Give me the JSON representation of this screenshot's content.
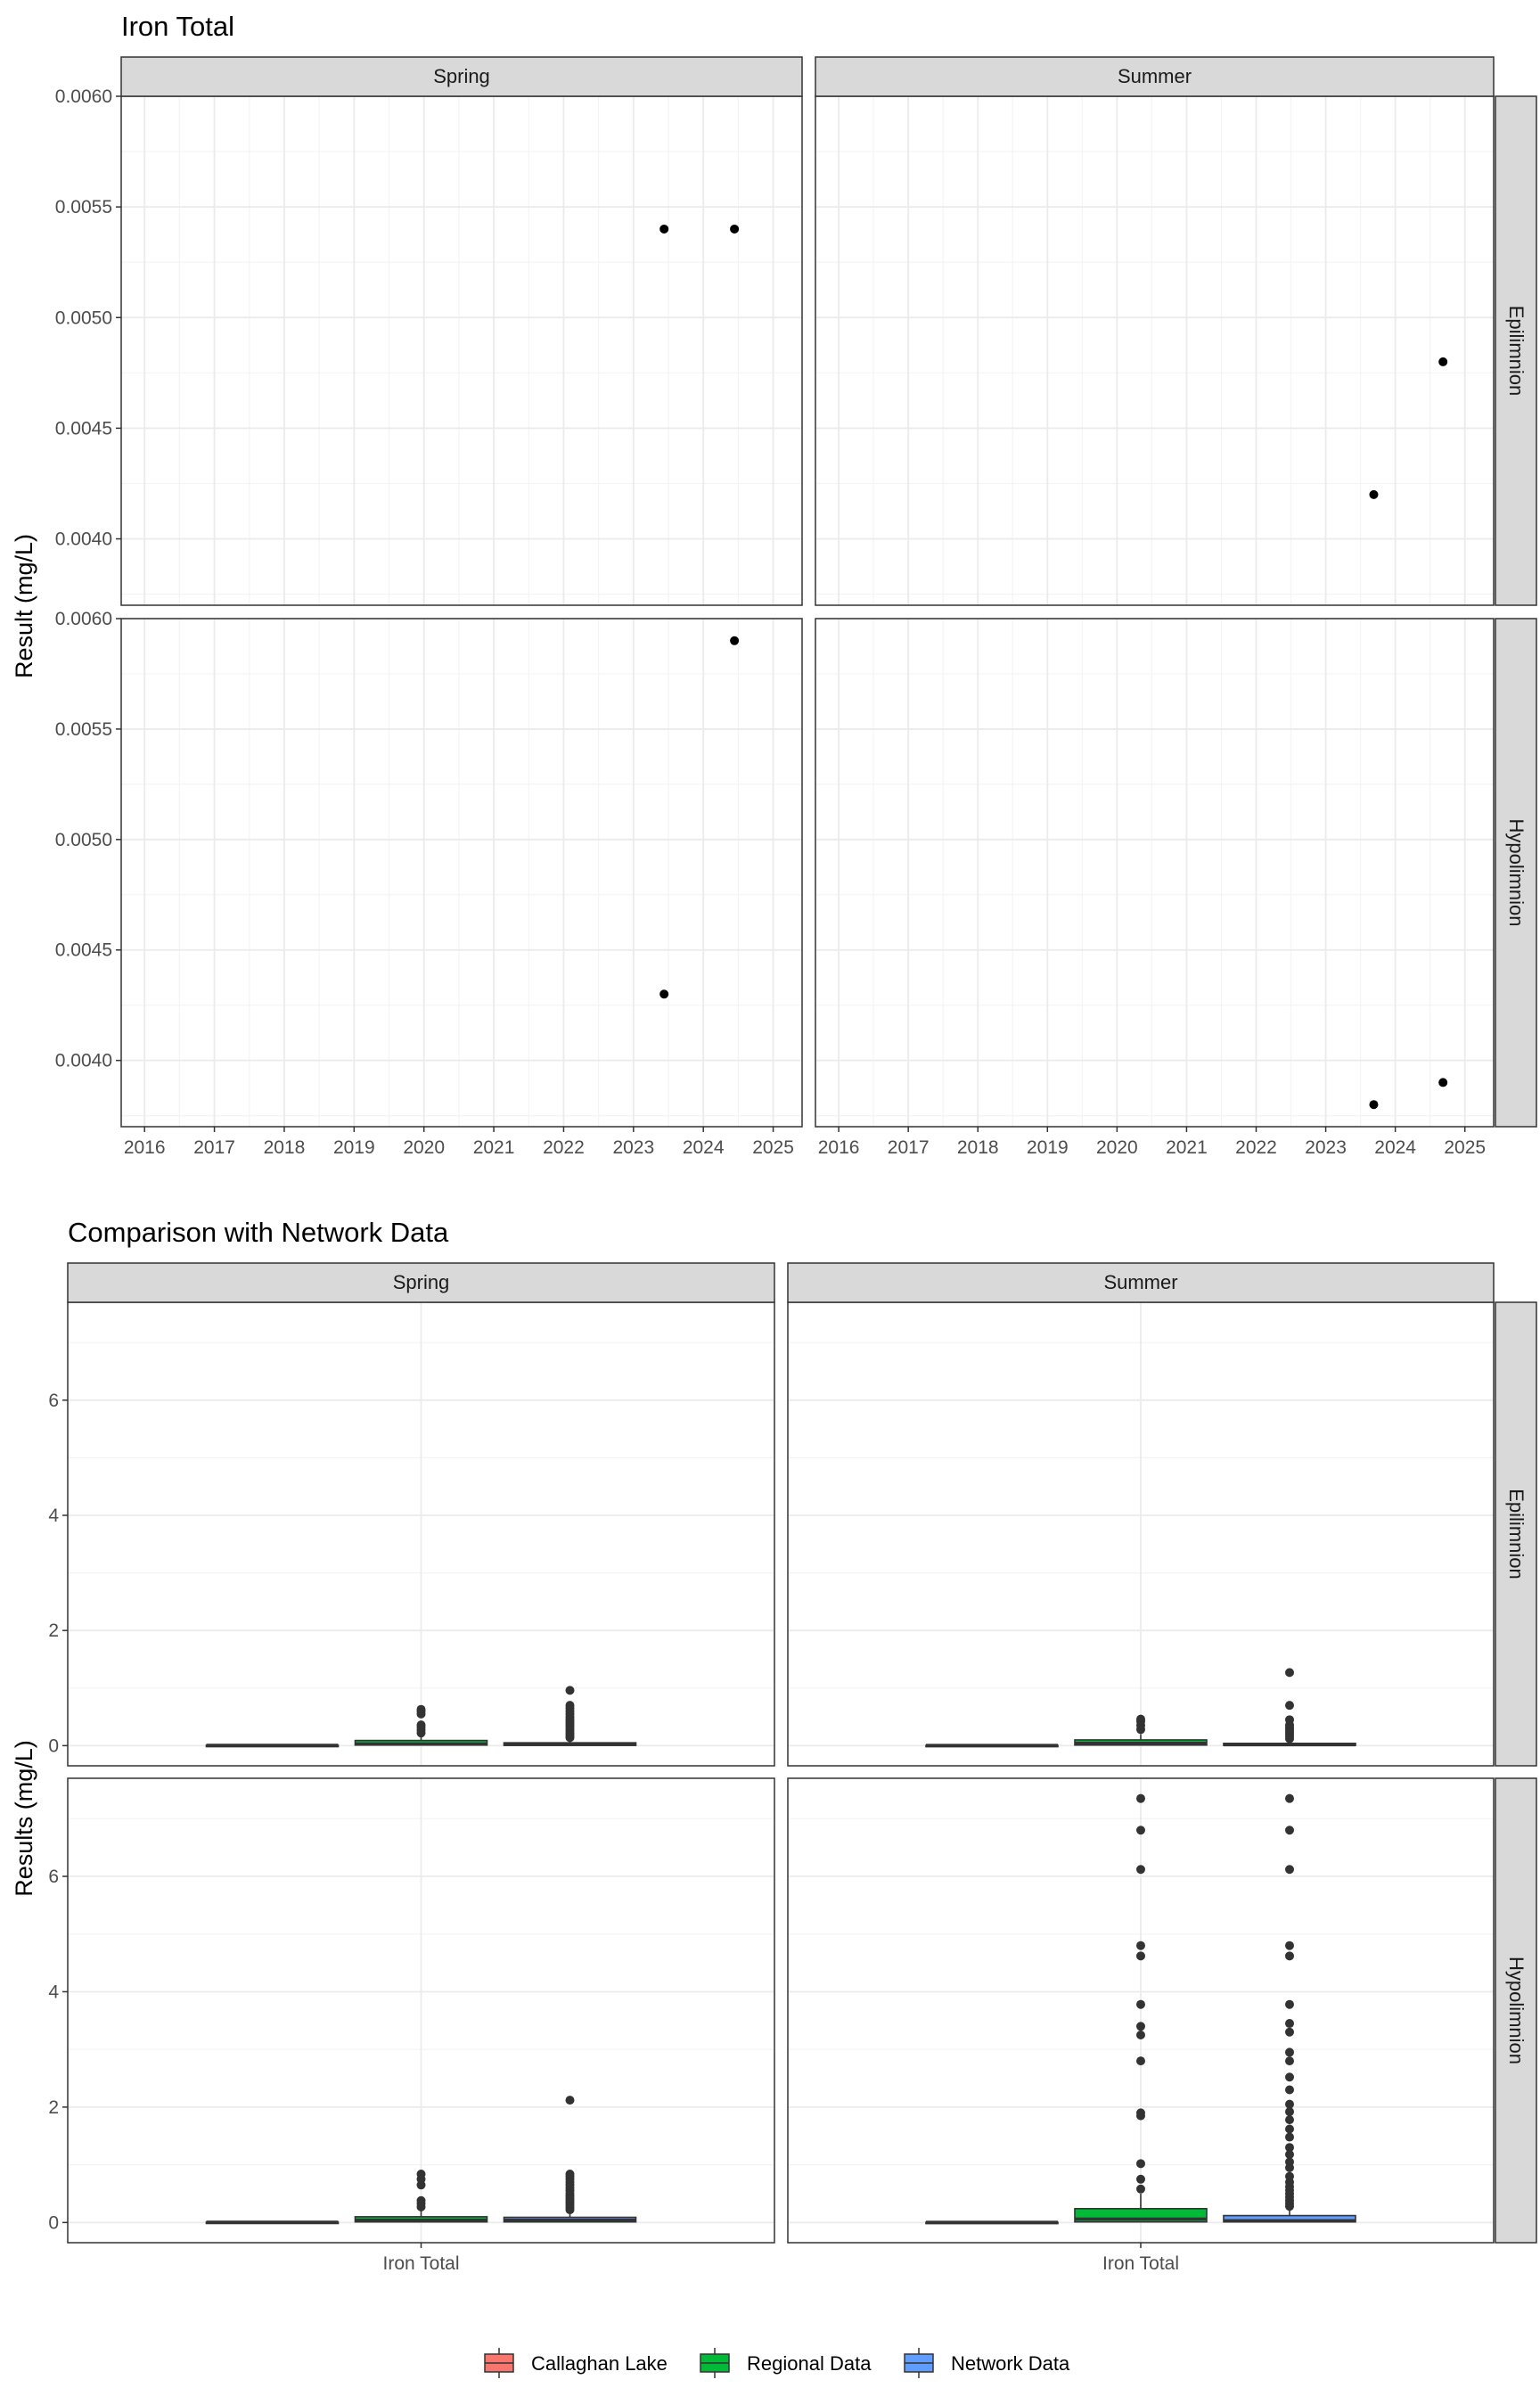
{
  "chart_data": [
    {
      "type": "scatter",
      "title": "Iron Total",
      "xlabel": "",
      "ylabel": "Result (mg/L)",
      "grid": true,
      "facet_cols": [
        "Spring",
        "Summer"
      ],
      "facet_rows": [
        "Epilimnion",
        "Hypolimnion"
      ],
      "x_ticks": [
        "2016",
        "2017",
        "2018",
        "2019",
        "2020",
        "2021",
        "2022",
        "2023",
        "2024",
        "2025"
      ],
      "xlim": [
        "2015-09-01",
        "2025-06-01"
      ],
      "rows": [
        {
          "ylim": [
            0.0037,
            0.006
          ],
          "y_ticks": [
            "0.0040",
            "0.0045",
            "0.0050",
            "0.0055",
            "0.0060"
          ]
        },
        {
          "ylim": [
            0.0037,
            0.006
          ],
          "y_ticks": [
            "0.0040",
            "0.0045",
            "0.0050",
            "0.0055",
            "0.0060"
          ]
        }
      ],
      "panels": [
        {
          "col": "Spring",
          "row": "Epilimnion",
          "points": [
            {
              "x": "2023-06-10",
              "y": 0.0054
            },
            {
              "x": "2024-06-12",
              "y": 0.0054
            }
          ]
        },
        {
          "col": "Summer",
          "row": "Epilimnion",
          "points": [
            {
              "x": "2023-09-10",
              "y": 0.0042
            },
            {
              "x": "2024-09-08",
              "y": 0.0048
            }
          ]
        },
        {
          "col": "Spring",
          "row": "Hypolimnion",
          "points": [
            {
              "x": "2023-06-10",
              "y": 0.0043
            },
            {
              "x": "2024-06-12",
              "y": 0.0059
            }
          ]
        },
        {
          "col": "Summer",
          "row": "Hypolimnion",
          "points": [
            {
              "x": "2023-09-10",
              "y": 0.0038
            },
            {
              "x": "2024-09-08",
              "y": 0.0039
            }
          ]
        }
      ]
    },
    {
      "type": "box",
      "title": "Comparison with Network Data",
      "xlabel": "",
      "ylabel": "Results (mg/L)",
      "grid": true,
      "facet_cols": [
        "Spring",
        "Summer"
      ],
      "facet_rows": [
        "Epilimnion",
        "Hypolimnion"
      ],
      "categories": [
        "Iron Total"
      ],
      "ylim": [
        -0.35,
        7.7
      ],
      "y_ticks": [
        "0",
        "2",
        "4",
        "6"
      ],
      "legend": {
        "position": "bottom",
        "entries": [
          {
            "name": "Callaghan Lake",
            "color": "#F8766D"
          },
          {
            "name": "Regional Data",
            "color": "#00BA38"
          },
          {
            "name": "Network Data",
            "color": "#619CFF"
          }
        ]
      },
      "panels": [
        {
          "col": "Spring",
          "row": "Epilimnion",
          "boxes": [
            {
              "series": "Callaghan Lake",
              "q1": 0.0054,
              "median": 0.0054,
              "q3": 0.0054,
              "whisker_low": 0.0054,
              "whisker_high": 0.0054,
              "outliers": []
            },
            {
              "series": "Regional Data",
              "q1": 0.01,
              "median": 0.03,
              "q3": 0.09,
              "whisker_low": 0.0,
              "whisker_high": 0.18,
              "outliers": [
                0.22,
                0.27,
                0.32,
                0.36,
                0.55,
                0.6,
                0.63
              ]
            },
            {
              "series": "Network Data",
              "q1": 0.005,
              "median": 0.02,
              "q3": 0.05,
              "whisker_low": 0.0,
              "whisker_high": 0.1,
              "outliers": [
                0.14,
                0.18,
                0.22,
                0.26,
                0.3,
                0.34,
                0.38,
                0.42,
                0.46,
                0.5,
                0.55,
                0.6,
                0.65,
                0.7,
                0.96
              ]
            }
          ]
        },
        {
          "col": "Summer",
          "row": "Epilimnion",
          "boxes": [
            {
              "series": "Callaghan Lake",
              "q1": 0.0042,
              "median": 0.0045,
              "q3": 0.0048,
              "whisker_low": 0.0042,
              "whisker_high": 0.0048,
              "outliers": []
            },
            {
              "series": "Regional Data",
              "q1": 0.01,
              "median": 0.04,
              "q3": 0.1,
              "whisker_low": 0.0,
              "whisker_high": 0.2,
              "outliers": [
                0.28,
                0.35,
                0.42,
                0.46
              ]
            },
            {
              "series": "Network Data",
              "q1": 0.005,
              "median": 0.015,
              "q3": 0.04,
              "whisker_low": 0.0,
              "whisker_high": 0.08,
              "outliers": [
                0.12,
                0.16,
                0.2,
                0.24,
                0.28,
                0.32,
                0.36,
                0.45,
                0.7,
                1.27
              ]
            }
          ]
        },
        {
          "col": "Spring",
          "row": "Hypolimnion",
          "boxes": [
            {
              "series": "Callaghan Lake",
              "q1": 0.0043,
              "median": 0.0051,
              "q3": 0.0059,
              "whisker_low": 0.0043,
              "whisker_high": 0.0059,
              "outliers": []
            },
            {
              "series": "Regional Data",
              "q1": 0.01,
              "median": 0.04,
              "q3": 0.1,
              "whisker_low": 0.0,
              "whisker_high": 0.2,
              "outliers": [
                0.27,
                0.33,
                0.38,
                0.65,
                0.75,
                0.84
              ]
            },
            {
              "series": "Network Data",
              "q1": 0.01,
              "median": 0.04,
              "q3": 0.09,
              "whisker_low": 0.0,
              "whisker_high": 0.18,
              "outliers": [
                0.22,
                0.26,
                0.3,
                0.34,
                0.38,
                0.42,
                0.46,
                0.5,
                0.55,
                0.6,
                0.65,
                0.7,
                0.75,
                0.8,
                0.84,
                2.12
              ]
            }
          ]
        },
        {
          "col": "Summer",
          "row": "Hypolimnion",
          "boxes": [
            {
              "series": "Callaghan Lake",
              "q1": 0.0038,
              "median": 0.00385,
              "q3": 0.0039,
              "whisker_low": 0.0038,
              "whisker_high": 0.0039,
              "outliers": []
            },
            {
              "series": "Regional Data",
              "q1": 0.01,
              "median": 0.06,
              "q3": 0.24,
              "whisker_low": 0.0,
              "whisker_high": 0.5,
              "outliers": [
                0.58,
                0.75,
                1.02,
                1.85,
                1.9,
                2.8,
                3.25,
                3.4,
                3.78,
                4.62,
                4.8,
                6.12,
                6.8,
                7.35
              ]
            },
            {
              "series": "Network Data",
              "q1": 0.01,
              "median": 0.03,
              "q3": 0.12,
              "whisker_low": 0.0,
              "whisker_high": 0.25,
              "outliers": [
                0.28,
                0.33,
                0.38,
                0.44,
                0.5,
                0.56,
                0.62,
                0.7,
                0.8,
                0.95,
                1.05,
                1.18,
                1.3,
                1.48,
                1.62,
                1.78,
                1.92,
                2.05,
                2.3,
                2.52,
                2.8,
                2.95,
                3.3,
                3.45,
                3.78,
                4.62,
                4.8,
                6.12,
                6.8,
                7.35
              ]
            }
          ]
        }
      ]
    }
  ]
}
